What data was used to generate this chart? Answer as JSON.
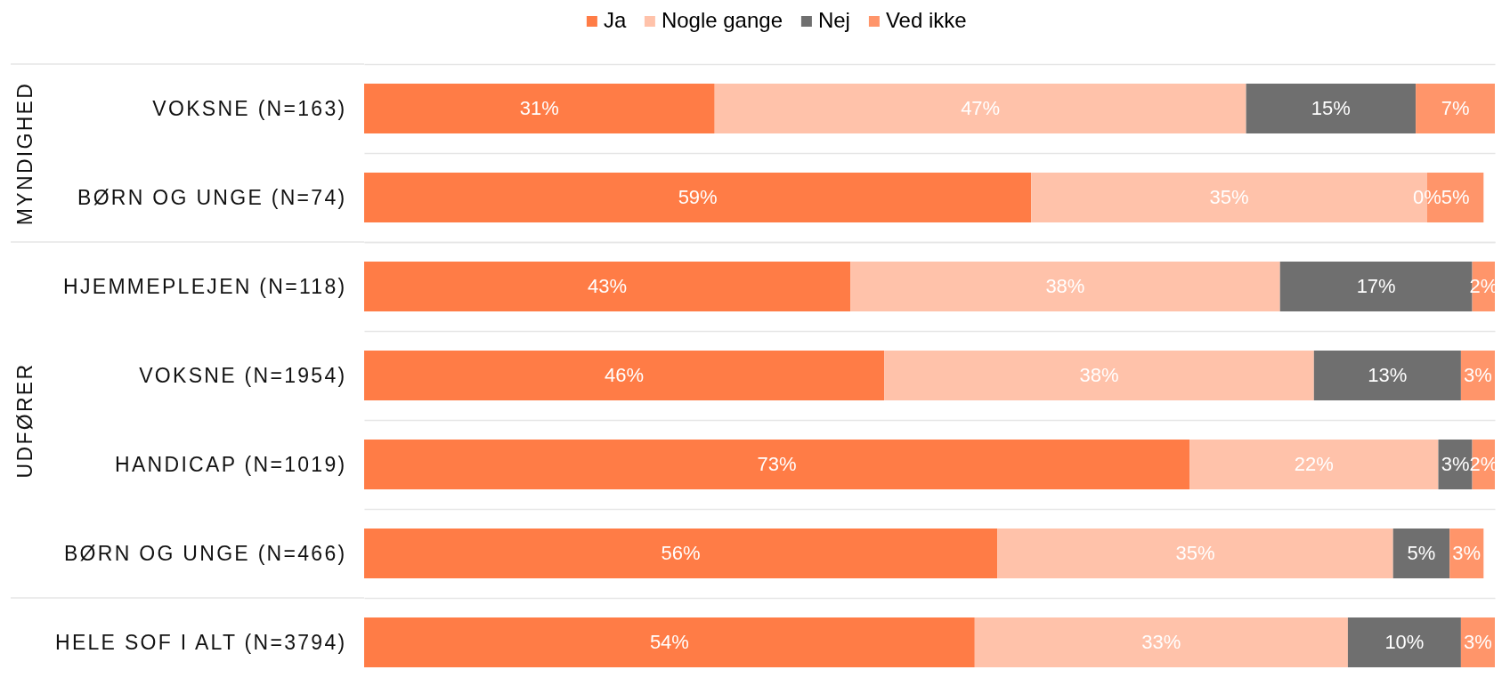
{
  "chart_data": [
    {
      "type": "bar",
      "orientation": "horizontal",
      "stacked": true,
      "ylabel": "MYNDIGHED",
      "legend": "top",
      "grid": "y",
      "tick_labels": "y",
      "categories": [
        "VOKSNE (N=163)",
        "BØRN OG UNGE (N=74)"
      ],
      "series": [
        {
          "name": "Ja",
          "color": "#ff7c46",
          "values": [
            31,
            59
          ],
          "value_labels": [
            "31%",
            "59%"
          ]
        },
        {
          "name": "Nogle gange",
          "color": "#ffc2aa",
          "values": [
            47,
            35
          ],
          "value_labels": [
            "47%",
            "35%"
          ]
        },
        {
          "name": "Nej",
          "color": "#6f6f6f",
          "values": [
            15,
            0
          ],
          "value_labels": [
            "15%",
            "0%"
          ]
        },
        {
          "name": "Ved ikke",
          "color": "#ff956a",
          "values": [
            7,
            5
          ],
          "value_labels": [
            "7%",
            "5%"
          ]
        }
      ]
    },
    {
      "type": "bar",
      "orientation": "horizontal",
      "stacked": true,
      "ylabel": "UDFØRER",
      "grid": "y",
      "tick_labels": "y",
      "categories": [
        "HJEMMEPLEJEN (N=118)",
        "VOKSNE (N=1954)",
        "HANDICAP (N=1019)",
        "BØRN OG UNGE (N=466)"
      ],
      "series": [
        {
          "color": "#ff7c46",
          "values": [
            43,
            46,
            73,
            56
          ],
          "value_labels": [
            "43%",
            "46%",
            "73%",
            "56%"
          ]
        },
        {
          "color": "#ffc2aa",
          "values": [
            38,
            38,
            22,
            35
          ],
          "value_labels": [
            "38%",
            "38%",
            "22%",
            "35%"
          ]
        },
        {
          "color": "#6f6f6f",
          "values": [
            17,
            13,
            3,
            5
          ],
          "value_labels": [
            "17%",
            "13%",
            "3%",
            "5%"
          ]
        },
        {
          "color": "#ff956a",
          "values": [
            2,
            3,
            2,
            3
          ],
          "value_labels": [
            "2%",
            "3%",
            "2%",
            "3%"
          ]
        }
      ]
    },
    {
      "type": "bar",
      "orientation": "horizontal",
      "stacked": true,
      "tick_labels": "y",
      "categories": [
        "HELE SOF I ALT (N=3794)"
      ],
      "series": [
        {
          "color": "#ff7c46",
          "values": [
            54
          ],
          "value_labels": [
            "54%"
          ]
        },
        {
          "color": "#ffc2aa",
          "values": [
            33
          ],
          "value_labels": [
            "33%"
          ]
        },
        {
          "color": "#6f6f6f",
          "values": [
            10
          ],
          "value_labels": [
            "10%"
          ]
        },
        {
          "color": "#ff956a",
          "values": [
            3
          ],
          "value_labels": [
            "3%"
          ]
        }
      ]
    }
  ]
}
